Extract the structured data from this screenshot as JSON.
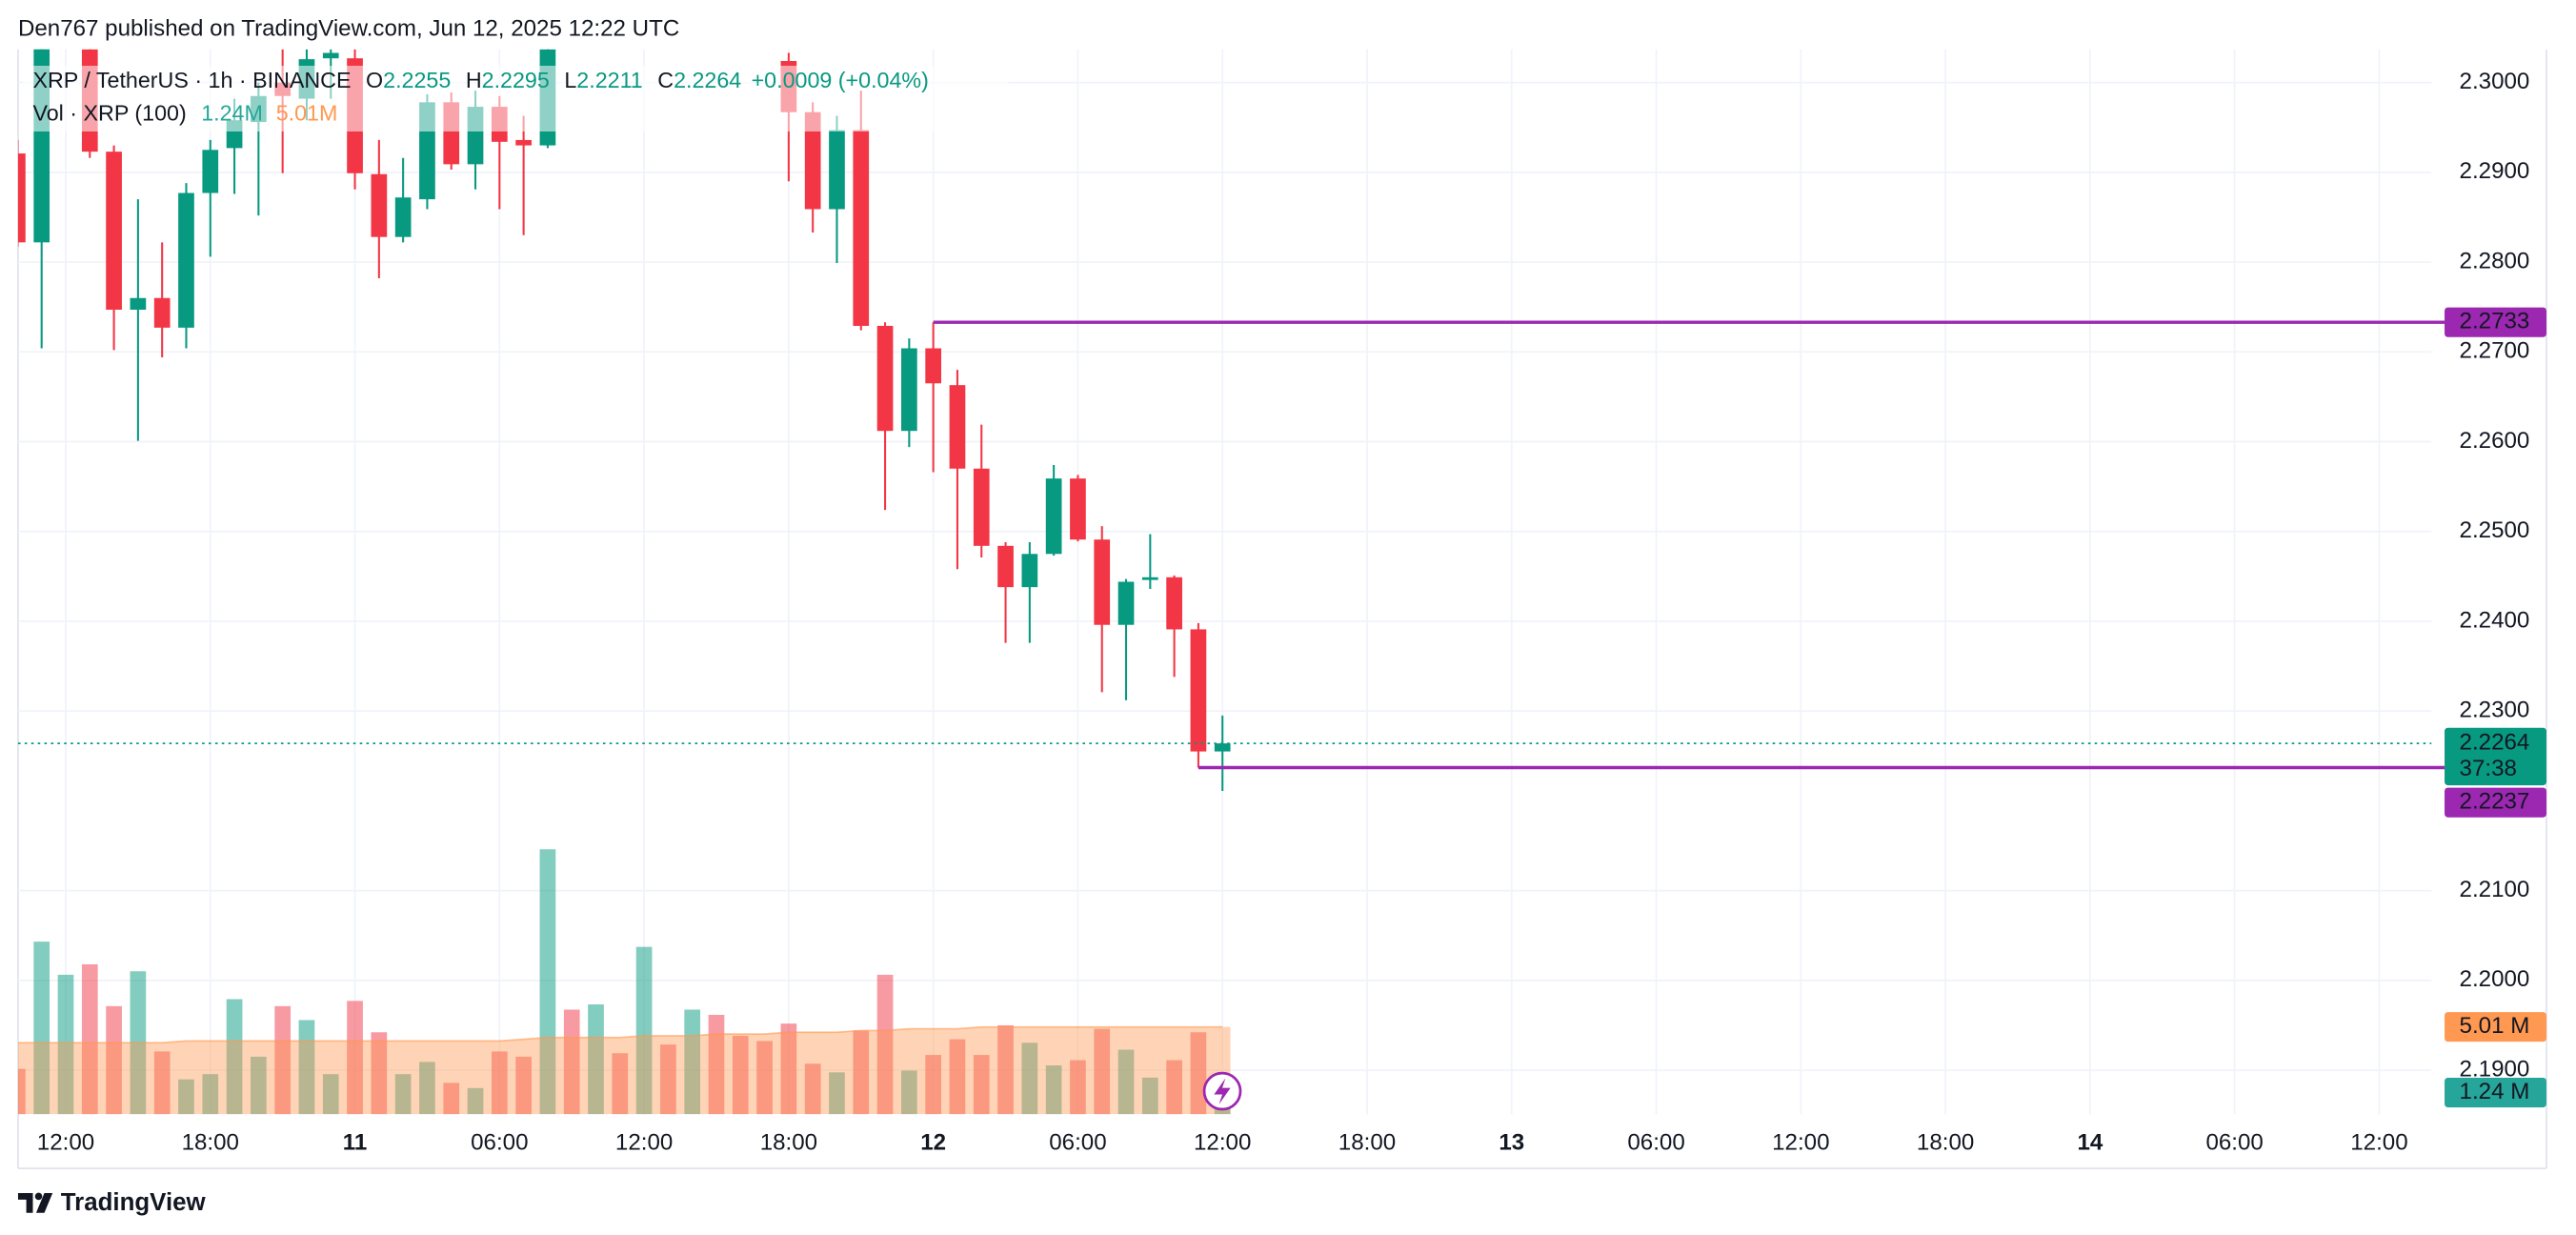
{
  "header": {
    "text": "Den767 published on TradingView.com, Jun 12, 2025 12:22 UTC"
  },
  "footer": {
    "logo": "TradingView"
  },
  "chart_data": {
    "type": "candlestick",
    "legend": {
      "symbol": "XRP / TetherUS · 1h · BINANCE",
      "o_label": "O",
      "h_label": "H",
      "l_label": "L",
      "c_label": "C",
      "change": "+0.0009 (+0.04%)",
      "volume_name": "Vol · XRP (100)"
    },
    "up_color": "#089981",
    "down_color": "#f23645",
    "x": [
      "10 10:00",
      "10 11:00",
      "10 12:00",
      "10 13:00",
      "10 14:00",
      "10 15:00",
      "10 16:00",
      "10 17:00",
      "10 18:00",
      "10 19:00",
      "10 20:00",
      "10 21:00",
      "10 22:00",
      "10 23:00",
      "11 00:00",
      "11 01:00",
      "11 02:00",
      "11 03:00",
      "11 04:00",
      "11 05:00",
      "11 06:00",
      "11 07:00",
      "11 08:00",
      "11 09:00",
      "11 10:00",
      "11 11:00",
      "11 12:00",
      "11 13:00",
      "11 14:00",
      "11 15:00",
      "11 16:00",
      "11 17:00",
      "11 18:00",
      "11 19:00",
      "11 20:00",
      "11 21:00",
      "11 22:00",
      "11 23:00",
      "12 00:00",
      "12 01:00",
      "12 02:00",
      "12 03:00",
      "12 04:00",
      "12 05:00",
      "12 06:00",
      "12 07:00",
      "12 08:00",
      "12 09:00",
      "12 10:00",
      "12 11:00",
      "12 12:00"
    ],
    "open": [
      2.2921,
      2.2822,
      null,
      2.3037,
      2.2923,
      2.2747,
      2.276,
      2.2727,
      2.2877,
      2.2927,
      2.2956,
      2.3,
      2.2982,
      2.3027,
      2.3027,
      2.2898,
      2.2828,
      2.287,
      2.2978,
      2.2909,
      2.2973,
      2.2936,
      2.293,
      null,
      null,
      null,
      null,
      null,
      null,
      null,
      null,
      null,
      2.3024,
      2.2967,
      2.2859,
      2.2947,
      2.2729,
      2.2612,
      2.2704,
      2.2663,
      2.257,
      2.2484,
      2.2438,
      2.2475,
      2.2559,
      2.2491,
      2.2396,
      2.2446,
      2.2449,
      2.2391,
      2.2255
    ],
    "high": [
      2.2936,
      2.3046,
      null,
      2.3046,
      2.293,
      2.287,
      2.2822,
      2.2888,
      2.2936,
      2.2982,
      2.3,
      2.3037,
      2.3037,
      2.3037,
      2.3037,
      2.2936,
      2.2916,
      2.2987,
      2.2989,
      2.2991,
      2.2985,
      2.2963,
      2.3046,
      null,
      null,
      null,
      null,
      null,
      null,
      null,
      null,
      null,
      2.3033,
      2.2978,
      2.2963,
      2.2991,
      2.2733,
      2.2715,
      2.2733,
      2.268,
      2.2619,
      2.2488,
      2.2488,
      2.2574,
      2.2563,
      2.2506,
      2.2447,
      2.2497,
      2.2451,
      2.2398,
      2.2295
    ],
    "low": [
      2.2817,
      2.2704,
      null,
      2.2916,
      2.2702,
      2.2601,
      2.2694,
      2.2704,
      2.2806,
      2.2876,
      2.2852,
      2.2899,
      2.2958,
      2.2982,
      2.2881,
      2.2782,
      2.2822,
      2.2859,
      2.2903,
      2.2881,
      2.2859,
      2.283,
      2.2927,
      null,
      null,
      null,
      null,
      null,
      null,
      null,
      null,
      null,
      2.289,
      2.2833,
      2.2799,
      2.2724,
      2.2524,
      2.2594,
      2.2566,
      2.2458,
      2.2471,
      2.2376,
      2.2376,
      2.2473,
      2.2489,
      2.2321,
      2.2312,
      2.2436,
      2.2338,
      2.2237,
      2.2211
    ],
    "close": [
      2.2822,
      2.304,
      null,
      2.2923,
      2.2747,
      2.276,
      2.2727,
      2.2877,
      2.2925,
      2.2958,
      2.2985,
      2.2985,
      2.3026,
      2.3033,
      2.2899,
      2.2828,
      2.2872,
      2.2978,
      2.2909,
      2.2973,
      2.2934,
      2.293,
      2.3037,
      null,
      null,
      null,
      null,
      null,
      null,
      null,
      null,
      null,
      2.2967,
      2.2859,
      2.2947,
      2.2729,
      2.2612,
      2.2704,
      2.2665,
      2.257,
      2.2484,
      2.2438,
      2.2475,
      2.2559,
      2.2491,
      2.2396,
      2.2444,
      2.2449,
      2.2391,
      2.2255,
      2.2264
    ],
    "countdown": "37:38",
    "xlim": [
      "10 10:00",
      "14 14:10"
    ],
    "xticks": [
      {
        "value": "10 12:00",
        "label": "12:00"
      },
      {
        "value": "10 18:00",
        "label": "18:00"
      },
      {
        "value": "11 00:00",
        "label": "11"
      },
      {
        "value": "11 06:00",
        "label": "06:00"
      },
      {
        "value": "11 12:00",
        "label": "12:00"
      },
      {
        "value": "11 18:00",
        "label": "18:00"
      },
      {
        "value": "12 00:00",
        "label": "12"
      },
      {
        "value": "12 06:00",
        "label": "06:00"
      },
      {
        "value": "12 12:00",
        "label": "12:00"
      },
      {
        "value": "12 18:00",
        "label": "18:00"
      },
      {
        "value": "13 00:00",
        "label": "13"
      },
      {
        "value": "13 06:00",
        "label": "06:00"
      },
      {
        "value": "13 12:00",
        "label": "12:00"
      },
      {
        "value": "13 18:00",
        "label": "18:00"
      },
      {
        "value": "14 00:00",
        "label": "14"
      },
      {
        "value": "14 06:00",
        "label": "06:00"
      },
      {
        "value": "14 12:00",
        "label": "12:00"
      }
    ],
    "ylim": [
      2.1851,
      2.3037
    ],
    "yticks": [
      {
        "value": 2.3,
        "label": "2.3000"
      },
      {
        "value": 2.29,
        "label": "2.2900"
      },
      {
        "value": 2.28,
        "label": "2.2800"
      },
      {
        "value": 2.27,
        "label": "2.2700"
      },
      {
        "value": 2.26,
        "label": "2.2600"
      },
      {
        "value": 2.25,
        "label": "2.2500"
      },
      {
        "value": 2.24,
        "label": "2.2400"
      },
      {
        "value": 2.23,
        "label": "2.2300"
      },
      {
        "value": 2.21,
        "label": "2.2100"
      },
      {
        "value": 2.2,
        "label": "2.2000"
      },
      {
        "value": 2.19,
        "label": "2.1900"
      }
    ],
    "grid": true,
    "levels": [
      {
        "value": 2.2733,
        "from": "12 00:00",
        "color": "#9c27b0"
      },
      {
        "value": 2.2237,
        "from": "12 11:00",
        "color": "#9c27b0"
      }
    ],
    "volume": {
      "ylim": [
        0,
        61.1
      ],
      "values": [
        2.6,
        9.9,
        8.0,
        8.6,
        6.2,
        8.2,
        3.6,
        2.0,
        2.3,
        6.6,
        3.3,
        6.2,
        5.4,
        2.3,
        6.5,
        4.7,
        2.3,
        3.0,
        1.8,
        1.5,
        3.6,
        3.3,
        15.2,
        6.0,
        6.3,
        3.5,
        9.6,
        4.0,
        6.0,
        5.7,
        4.5,
        4.2,
        5.2,
        2.9,
        2.4,
        4.8,
        8.0,
        2.5,
        3.4,
        4.3,
        3.4,
        5.1,
        4.1,
        2.8,
        3.1,
        4.9,
        3.7,
        2.1,
        3.1,
        4.7,
        1.24
      ],
      "colors": [
        "#f2364580",
        "#08998180",
        "#08998180",
        "#f2364580",
        "#f2364580",
        "#08998180",
        "#f2364580",
        "#08998180",
        "#08998180",
        "#08998180",
        "#08998180",
        "#f2364580",
        "#08998180",
        "#08998180",
        "#f2364580",
        "#f2364580",
        "#08998180",
        "#08998180",
        "#f2364580",
        "#08998180",
        "#f2364580",
        "#f2364580",
        "#08998180",
        "#f2364580",
        "#08998180",
        "#f2364580",
        "#08998180",
        "#f2364580",
        "#08998180",
        "#f2364580",
        "#f2364580",
        "#f2364580",
        "#f2364580",
        "#f2364580",
        "#08998180",
        "#f2364580",
        "#f2364580",
        "#08998180",
        "#f2364580",
        "#f2364580",
        "#f2364580",
        "#f2364580",
        "#08998180",
        "#08998180",
        "#f2364580",
        "#f2364580",
        "#08998180",
        "#08998180",
        "#f2364580",
        "#f2364580",
        "#08998180"
      ],
      "last_label": "1.24M",
      "last_axis_label": "1.24 M",
      "label_color": "#26a69a"
    },
    "ma": {
      "values": [
        4.1,
        4.1,
        4.1,
        4.1,
        4.1,
        4.1,
        4.1,
        4.2,
        4.2,
        4.2,
        4.2,
        4.2,
        4.2,
        4.2,
        4.2,
        4.2,
        4.2,
        4.2,
        4.2,
        4.2,
        4.2,
        4.3,
        4.4,
        4.4,
        4.4,
        4.4,
        4.5,
        4.5,
        4.5,
        4.6,
        4.6,
        4.6,
        4.7,
        4.7,
        4.7,
        4.8,
        4.8,
        4.9,
        4.9,
        4.9,
        5.0,
        5.0,
        5.0,
        5.0,
        5.0,
        5.0,
        5.0,
        5.0,
        5.0,
        5.0,
        5.01
      ],
      "color": "#ff9850",
      "last_label": "5.01M",
      "last_axis_label": "5.01 M"
    }
  }
}
